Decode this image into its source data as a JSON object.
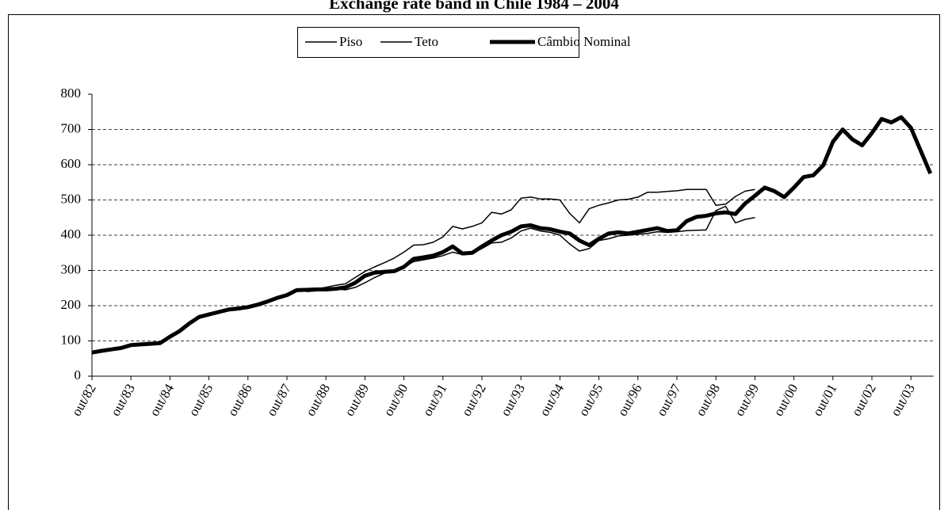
{
  "chart_data": {
    "type": "line",
    "title": "Exchange rate band in Chile  1984 – 2004",
    "categories": [
      "out/82",
      null,
      null,
      null,
      "out/83",
      null,
      null,
      null,
      "out/84",
      null,
      null,
      null,
      "out/85",
      null,
      null,
      null,
      "out/86",
      null,
      null,
      null,
      "out/87",
      null,
      null,
      null,
      "out/88",
      null,
      null,
      null,
      "out/89",
      null,
      null,
      null,
      "out/90",
      null,
      null,
      null,
      "out/91",
      null,
      null,
      null,
      "out/92",
      null,
      null,
      null,
      "out/93",
      null,
      null,
      null,
      "out/94",
      null,
      null,
      null,
      "out/95",
      null,
      null,
      null,
      "out/96",
      null,
      null,
      null,
      "out/97",
      null,
      null,
      null,
      "out/98",
      null,
      null,
      null,
      "out/99",
      null,
      null,
      null,
      "out/00",
      null,
      null,
      null,
      "out/01",
      null,
      null,
      null,
      "out/02",
      null,
      null,
      null,
      "out/03",
      null,
      null
    ],
    "series": [
      {
        "name": "Piso",
        "color": "#000000",
        "values": [
          null,
          null,
          null,
          null,
          null,
          null,
          null,
          null,
          null,
          null,
          null,
          null,
          null,
          null,
          null,
          null,
          null,
          null,
          null,
          null,
          null,
          null,
          240,
          242,
          245,
          248,
          245,
          252,
          265,
          280,
          292,
          300,
          310,
          325,
          330,
          335,
          342,
          352,
          345,
          350,
          362,
          378,
          380,
          392,
          412,
          420,
          412,
          408,
          400,
          375,
          355,
          362,
          385,
          390,
          398,
          400,
          403,
          405,
          410,
          408,
          410,
          413,
          414,
          415,
          470,
          482,
          435,
          445,
          450,
          null,
          null,
          null,
          null,
          null,
          null,
          null,
          null,
          null,
          null,
          null,
          null,
          null,
          null,
          null,
          null,
          null,
          null
        ]
      },
      {
        "name": "Teto",
        "color": "#000000",
        "values": [
          null,
          null,
          null,
          null,
          null,
          null,
          null,
          null,
          null,
          null,
          null,
          null,
          null,
          null,
          null,
          null,
          null,
          null,
          null,
          null,
          null,
          null,
          245,
          248,
          252,
          258,
          262,
          280,
          297,
          310,
          322,
          335,
          352,
          372,
          373,
          380,
          395,
          425,
          418,
          425,
          435,
          465,
          460,
          472,
          505,
          508,
          503,
          503,
          500,
          462,
          435,
          475,
          485,
          492,
          500,
          502,
          508,
          522,
          522,
          524,
          526,
          530,
          530,
          530,
          485,
          488,
          510,
          525,
          530,
          null,
          null,
          null,
          null,
          null,
          null,
          null,
          null,
          null,
          null,
          null,
          null,
          null,
          null,
          null,
          null,
          null,
          null
        ]
      },
      {
        "name": "Câmbio Nominal",
        "color": "#000000",
        "values": [
          67,
          72,
          76,
          80,
          88,
          90,
          92,
          94,
          112,
          128,
          150,
          168,
          175,
          182,
          189,
          192,
          196,
          203,
          212,
          222,
          230,
          244,
          245,
          246,
          246,
          248,
          252,
          265,
          285,
          294,
          296,
          298,
          310,
          333,
          337,
          342,
          352,
          368,
          348,
          350,
          368,
          385,
          400,
          410,
          425,
          428,
          420,
          417,
          410,
          405,
          385,
          372,
          390,
          405,
          408,
          405,
          410,
          415,
          420,
          412,
          414,
          440,
          452,
          455,
          462,
          465,
          460,
          490,
          512,
          535,
          525,
          508,
          535,
          565,
          570,
          598,
          665,
          700,
          672,
          655,
          690,
          730,
          720,
          735,
          705,
          640,
          575
        ]
      }
    ],
    "ylim": [
      0,
      800
    ],
    "yticks": [
      0,
      100,
      200,
      300,
      400,
      500,
      600,
      700,
      800
    ],
    "grid": true
  }
}
